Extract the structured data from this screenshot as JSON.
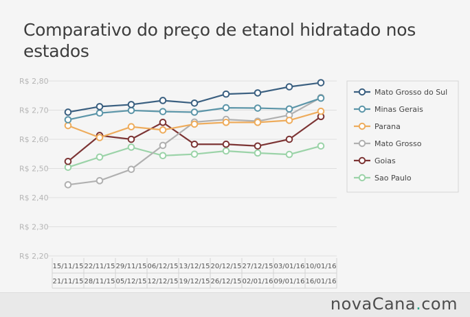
{
  "title": "Comparativo do preço de etanol hidratado nos estados",
  "logo": {
    "part1": "nova",
    "part2": "Cana",
    "dot": ".",
    "part3": "com"
  },
  "chart_data": {
    "type": "line",
    "title": "Comparativo do preço de etanol hidratado nos estados",
    "xlabel": "",
    "ylabel": "",
    "ylim": [
      2.2,
      2.8
    ],
    "yticks": [
      "R$ 2,80",
      "R$ 2,70",
      "R$ 2,60",
      "R$ 2,50",
      "R$ 2,40",
      "R$ 2,30",
      "R$ 2,20"
    ],
    "ytick_values": [
      2.8,
      2.7,
      2.6,
      2.5,
      2.4,
      2.3,
      2.2
    ],
    "categories": [
      [
        "15/11/15",
        "21/11/15"
      ],
      [
        "22/11/15",
        "28/11/15"
      ],
      [
        "29/11/15",
        "05/12/15"
      ],
      [
        "06/12/15",
        "12/12/15"
      ],
      [
        "13/12/15",
        "19/12/15"
      ],
      [
        "20/12/15",
        "26/12/15"
      ],
      [
        "27/12/15",
        "02/01/16"
      ],
      [
        "03/01/16",
        "09/01/16"
      ],
      [
        "10/01/16",
        "16/01/16"
      ]
    ],
    "grid": true,
    "legend_position": "right",
    "series": [
      {
        "name": "Mato Grosso do Sul",
        "color": "#3a5f80",
        "values": [
          2.693,
          2.712,
          2.719,
          2.733,
          2.724,
          2.755,
          2.759,
          2.78,
          2.794
        ]
      },
      {
        "name": "Minas Gerais",
        "color": "#5b95a8",
        "values": [
          2.667,
          2.69,
          2.699,
          2.695,
          2.693,
          2.708,
          2.707,
          2.704,
          2.741
        ]
      },
      {
        "name": "Parana",
        "color": "#eeac5c",
        "values": [
          2.647,
          2.606,
          2.643,
          2.632,
          2.652,
          2.658,
          2.658,
          2.665,
          2.696
        ]
      },
      {
        "name": "Mato Grosso",
        "color": "#b0b0b0",
        "values": [
          2.444,
          2.458,
          2.497,
          2.579,
          2.659,
          2.668,
          2.662,
          2.683,
          2.743
        ]
      },
      {
        "name": "Goias",
        "color": "#7c3434",
        "values": [
          2.524,
          2.613,
          2.6,
          2.658,
          2.583,
          2.583,
          2.577,
          2.6,
          2.678
        ]
      },
      {
        "name": "Sao Paulo",
        "color": "#9bd3a8",
        "values": [
          2.504,
          2.539,
          2.573,
          2.544,
          2.549,
          2.56,
          2.553,
          2.548,
          2.577
        ]
      }
    ]
  }
}
